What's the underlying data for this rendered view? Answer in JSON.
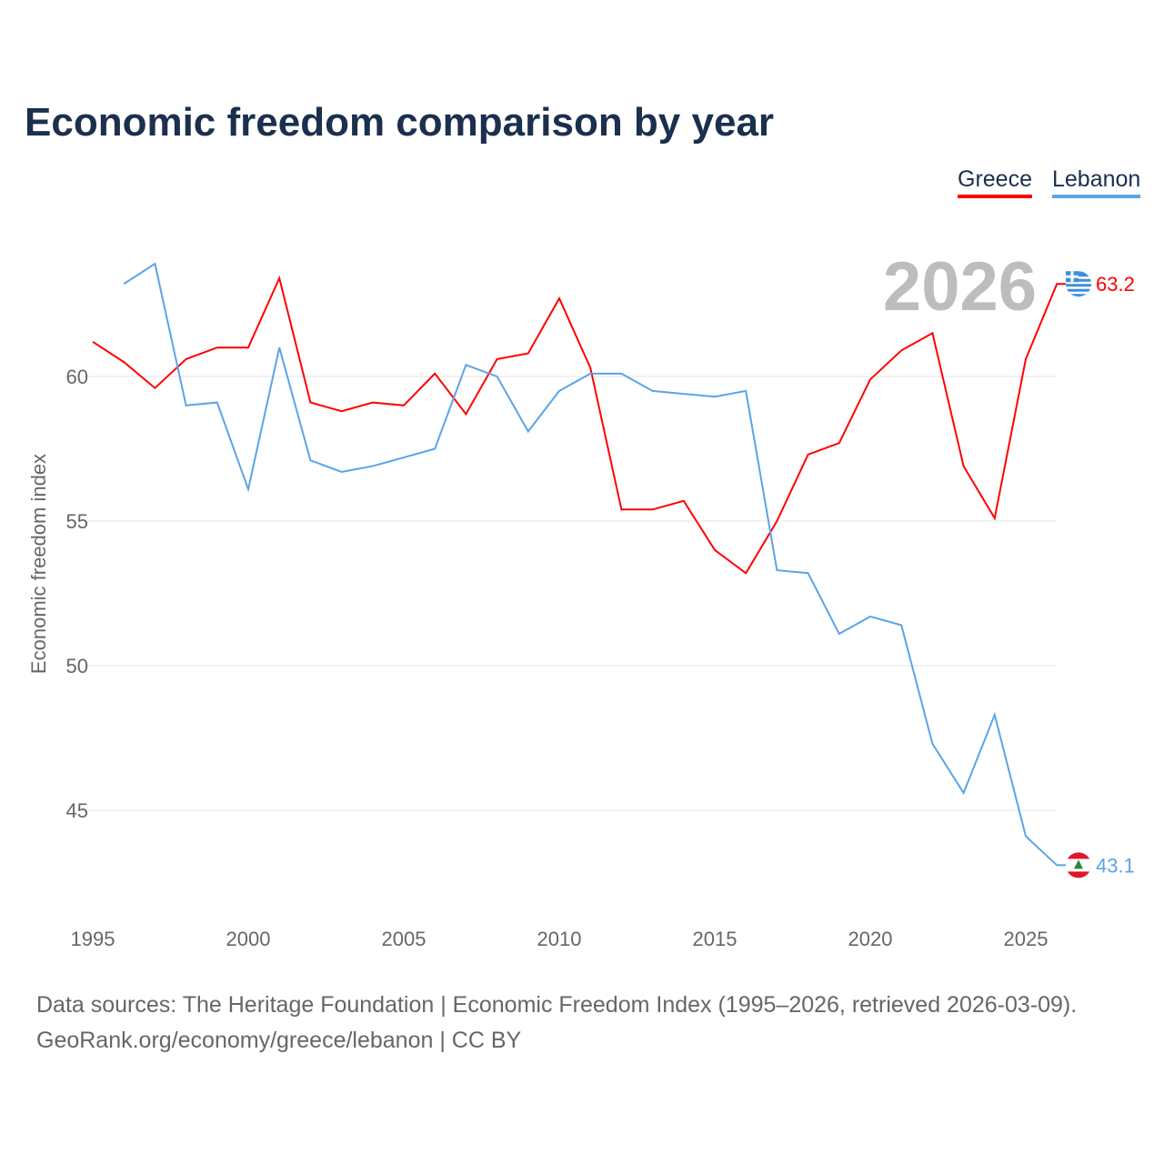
{
  "chart_data": {
    "type": "line",
    "title": "Economic freedom comparison by year",
    "xlabel": "",
    "ylabel": "Economic freedom index",
    "xlim": [
      1995,
      2026
    ],
    "ylim": [
      42,
      65
    ],
    "x_ticks": [
      1995,
      2000,
      2005,
      2010,
      2015,
      2020,
      2025
    ],
    "y_ticks": [
      45,
      50,
      55,
      60
    ],
    "grid": true,
    "legend_position": "top-right",
    "year_label": "2026",
    "series": [
      {
        "name": "Greece",
        "color": "#ff0000",
        "end_label": "63.2",
        "x": [
          1995,
          1996,
          1997,
          1998,
          1999,
          2000,
          2001,
          2002,
          2003,
          2004,
          2005,
          2006,
          2007,
          2008,
          2009,
          2010,
          2011,
          2012,
          2013,
          2014,
          2015,
          2016,
          2017,
          2018,
          2019,
          2020,
          2021,
          2022,
          2023,
          2024,
          2025,
          2026
        ],
        "values": [
          61.2,
          60.5,
          59.6,
          60.6,
          61.0,
          61.0,
          63.4,
          59.1,
          58.8,
          59.1,
          59.0,
          60.1,
          58.7,
          60.6,
          60.8,
          62.7,
          60.3,
          55.4,
          55.4,
          55.7,
          54.0,
          53.2,
          55.0,
          57.3,
          57.7,
          59.9,
          60.9,
          61.5,
          56.9,
          55.1,
          60.6,
          63.2
        ]
      },
      {
        "name": "Lebanon",
        "color": "#5aa4e8",
        "end_label": "43.1",
        "x": [
          1996,
          1997,
          1998,
          1999,
          2000,
          2001,
          2002,
          2003,
          2004,
          2005,
          2006,
          2007,
          2008,
          2009,
          2010,
          2011,
          2012,
          2013,
          2014,
          2015,
          2016,
          2017,
          2018,
          2019,
          2020,
          2021,
          2022,
          2023,
          2024,
          2025,
          2026
        ],
        "values": [
          63.2,
          63.9,
          59.0,
          59.1,
          56.1,
          61.0,
          57.1,
          56.7,
          56.9,
          57.2,
          57.5,
          60.4,
          60.0,
          58.1,
          59.5,
          60.1,
          60.1,
          59.5,
          59.4,
          59.3,
          59.5,
          53.3,
          53.2,
          51.1,
          51.7,
          51.4,
          47.3,
          45.6,
          48.3,
          44.1,
          43.1
        ]
      }
    ]
  },
  "source": {
    "line1": "Data sources: The Heritage Foundation | Economic Freedom Index (1995–2026, retrieved 2026-03-09).",
    "line2": "GeoRank.org/economy/greece/lebanon | CC BY"
  }
}
